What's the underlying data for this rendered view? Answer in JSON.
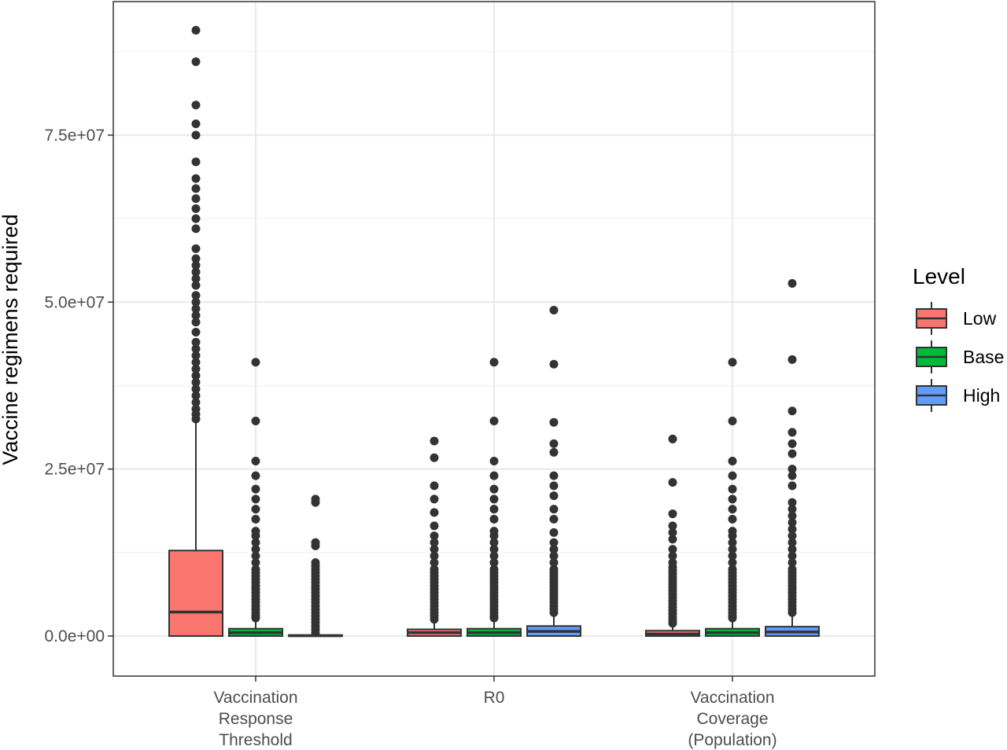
{
  "chart_data": {
    "type": "boxplot",
    "ylabel": "Vaccine regimens required",
    "ylim": [
      -6000000,
      95000000
    ],
    "yticks": [
      0,
      25000000,
      50000000,
      75000000
    ],
    "ytick_labels": [
      "0.0e+00",
      "2.5e+07",
      "5.0e+07",
      "7.5e+07"
    ],
    "categories": [
      [
        "Vaccination",
        "Response",
        "Threshold"
      ],
      [
        "R0"
      ],
      [
        "Vaccination",
        "Coverage",
        "(Population)"
      ]
    ],
    "legend": {
      "title": "Level",
      "position": "right",
      "entries": [
        {
          "label": "Low",
          "color": "#F8766D"
        },
        {
          "label": "Base",
          "color": "#00BA38"
        },
        {
          "label": "High",
          "color": "#619CFF"
        }
      ]
    },
    "grid": true,
    "series": [
      {
        "name": "Low",
        "color": "#F8766D",
        "boxes": [
          {
            "q1": 0,
            "median": 3600000,
            "q3": 12800000,
            "whisker_low": 0,
            "whisker_high": 32300000,
            "outliers": [
              32500000,
              33200000,
              34000000,
              35000000,
              36000000,
              37000000,
              38000000,
              39000000,
              40000000,
              41000000,
              42000000,
              43000000,
              44000000,
              45500000,
              47000000,
              48000000,
              49000000,
              50000000,
              51000000,
              52500000,
              53500000,
              54500000,
              55500000,
              56500000,
              58000000,
              61000000,
              62500000,
              64000000,
              65500000,
              67000000,
              68500000,
              71000000,
              75000000,
              76700000,
              79500000,
              86000000,
              90700000
            ]
          },
          {
            "q1": 0,
            "median": 500000,
            "q3": 1000000,
            "whisker_low": 0,
            "whisker_high": 2300000,
            "outliers": [
              2500000,
              3000000,
              3500000,
              4000000,
              4500000,
              5000000,
              5500000,
              6000000,
              6500000,
              7000000,
              7500000,
              8000000,
              8500000,
              9000000,
              9500000,
              10000000,
              11000000,
              12000000,
              13000000,
              14000000,
              15000000,
              16500000,
              18500000,
              20500000,
              22500000,
              26700000,
              29200000
            ]
          },
          {
            "q1": 0,
            "median": 300000,
            "q3": 800000,
            "whisker_low": 0,
            "whisker_high": 1700000,
            "outliers": [
              1900000,
              2300000,
              2800000,
              3300000,
              3800000,
              4300000,
              4800000,
              5300000,
              5800000,
              6300000,
              6800000,
              7300000,
              7800000,
              8300000,
              8800000,
              9300000,
              9800000,
              10300000,
              11000000,
              12000000,
              13000000,
              14500000,
              15500000,
              16500000,
              18300000,
              23000000,
              29500000
            ]
          }
        ]
      },
      {
        "name": "Base",
        "color": "#00BA38",
        "boxes": [
          {
            "q1": 0,
            "median": 500000,
            "q3": 1100000,
            "whisker_low": 0,
            "whisker_high": 2500000,
            "outliers": [
              2700000,
              3000000,
              3500000,
              4000000,
              4500000,
              5000000,
              5500000,
              6000000,
              6500000,
              7000000,
              7500000,
              8000000,
              8500000,
              9000000,
              9500000,
              10000000,
              11000000,
              12000000,
              13000000,
              14000000,
              15000000,
              15700000,
              17500000,
              19000000,
              20500000,
              22000000,
              24000000,
              26200000,
              32200000,
              41000000
            ]
          },
          {
            "q1": 0,
            "median": 500000,
            "q3": 1100000,
            "whisker_low": 0,
            "whisker_high": 2500000,
            "outliers": [
              2700000,
              3000000,
              3500000,
              4000000,
              4500000,
              5000000,
              5500000,
              6000000,
              6500000,
              7000000,
              7500000,
              8000000,
              8500000,
              9000000,
              9500000,
              10000000,
              11000000,
              12000000,
              13000000,
              14000000,
              15000000,
              15700000,
              17500000,
              19000000,
              20500000,
              22000000,
              24000000,
              26200000,
              32200000,
              41000000
            ]
          },
          {
            "q1": 0,
            "median": 500000,
            "q3": 1100000,
            "whisker_low": 0,
            "whisker_high": 2500000,
            "outliers": [
              2700000,
              3000000,
              3500000,
              4000000,
              4500000,
              5000000,
              5500000,
              6000000,
              6500000,
              7000000,
              7500000,
              8000000,
              8500000,
              9000000,
              9500000,
              10000000,
              11000000,
              12000000,
              13000000,
              14000000,
              15000000,
              15700000,
              17500000,
              19000000,
              20500000,
              22000000,
              24000000,
              26200000,
              32200000,
              41000000
            ]
          }
        ]
      },
      {
        "name": "High",
        "color": "#619CFF",
        "boxes": [
          {
            "q1": 0,
            "median": 50000,
            "q3": 150000,
            "whisker_low": 0,
            "whisker_high": 350000,
            "outliers": [
              500000,
              1000000,
              1500000,
              2000000,
              2500000,
              3000000,
              3500000,
              4000000,
              4500000,
              5000000,
              5500000,
              6000000,
              6500000,
              7000000,
              7500000,
              8000000,
              8500000,
              9000000,
              9500000,
              10000000,
              10500000,
              11000000,
              13500000,
              14000000,
              20000000,
              20500000
            ]
          },
          {
            "q1": 0,
            "median": 700000,
            "q3": 1500000,
            "whisker_low": 0,
            "whisker_high": 3300000,
            "outliers": [
              3500000,
              4000000,
              4500000,
              5000000,
              5500000,
              6000000,
              6500000,
              7000000,
              7500000,
              8000000,
              8500000,
              9000000,
              9500000,
              10000000,
              11000000,
              12000000,
              13000000,
              14000000,
              15500000,
              17500000,
              19000000,
              21000000,
              22500000,
              24000000,
              27500000,
              28800000,
              32000000,
              40700000,
              48800000
            ]
          },
          {
            "q1": 0,
            "median": 600000,
            "q3": 1400000,
            "whisker_low": 0,
            "whisker_high": 3300000,
            "outliers": [
              3500000,
              4000000,
              4500000,
              5000000,
              5500000,
              6000000,
              6500000,
              7000000,
              7500000,
              8000000,
              8500000,
              9000000,
              9500000,
              10000000,
              11000000,
              12000000,
              13000000,
              14000000,
              15000000,
              16000000,
              17000000,
              18000000,
              19000000,
              20000000,
              22500000,
              24000000,
              25000000,
              27300000,
              28800000,
              30500000,
              33700000,
              41400000,
              52800000
            ]
          }
        ]
      }
    ]
  }
}
